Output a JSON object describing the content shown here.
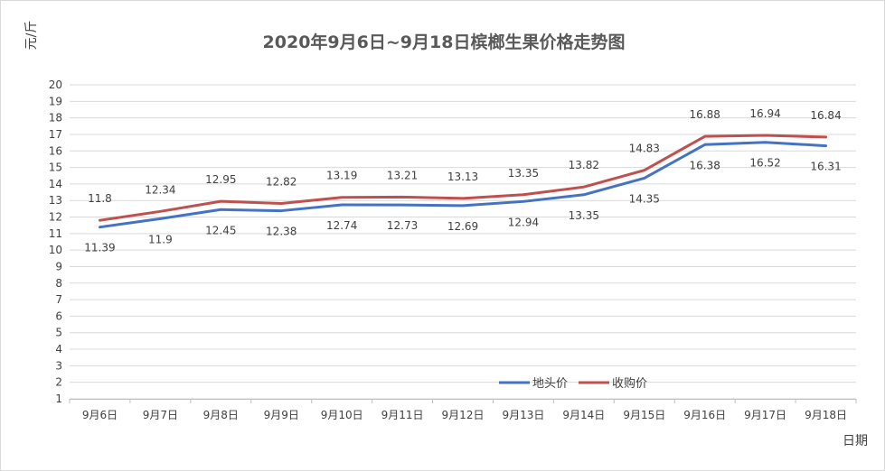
{
  "chart_data": {
    "type": "line",
    "title": "2020年9月6日~9月18日槟榔生果价格走势图",
    "ylabel": "元/斤",
    "xlabel": "日期",
    "categories": [
      "9月6日",
      "9月7日",
      "9月8日",
      "9月9日",
      "9月10日",
      "9月11日",
      "9月12日",
      "9月13日",
      "9月14日",
      "9月15日",
      "9月16日",
      "9月17日",
      "9月18日"
    ],
    "ylim": [
      1,
      20
    ],
    "yticks": [
      1,
      2,
      3,
      4,
      5,
      6,
      7,
      8,
      9,
      10,
      11,
      12,
      13,
      14,
      15,
      16,
      17,
      18,
      19,
      20
    ],
    "grid": true,
    "legend_position": "bottom-right",
    "series": [
      {
        "name": "地头价",
        "color": "#4472c4",
        "values": [
          11.39,
          11.9,
          12.45,
          12.38,
          12.74,
          12.73,
          12.69,
          12.94,
          13.35,
          14.35,
          16.38,
          16.52,
          16.31
        ],
        "labels": [
          "11.39",
          "11.9",
          "12.45",
          "12.38",
          "12.74",
          "12.73",
          "12.69",
          "12.94",
          "13.35",
          "14.35",
          "16.38",
          "16.52",
          "16.31"
        ]
      },
      {
        "name": "收购价",
        "color": "#c0504d",
        "values": [
          11.8,
          12.34,
          12.95,
          12.82,
          13.19,
          13.21,
          13.13,
          13.35,
          13.82,
          14.83,
          16.88,
          16.94,
          16.84
        ],
        "labels": [
          "11.8",
          "12.34",
          "12.95",
          "12.82",
          "13.19",
          "13.21",
          "13.13",
          "13.35",
          "13.82",
          "14.83",
          "16.88",
          "16.94",
          "16.84"
        ]
      }
    ]
  }
}
